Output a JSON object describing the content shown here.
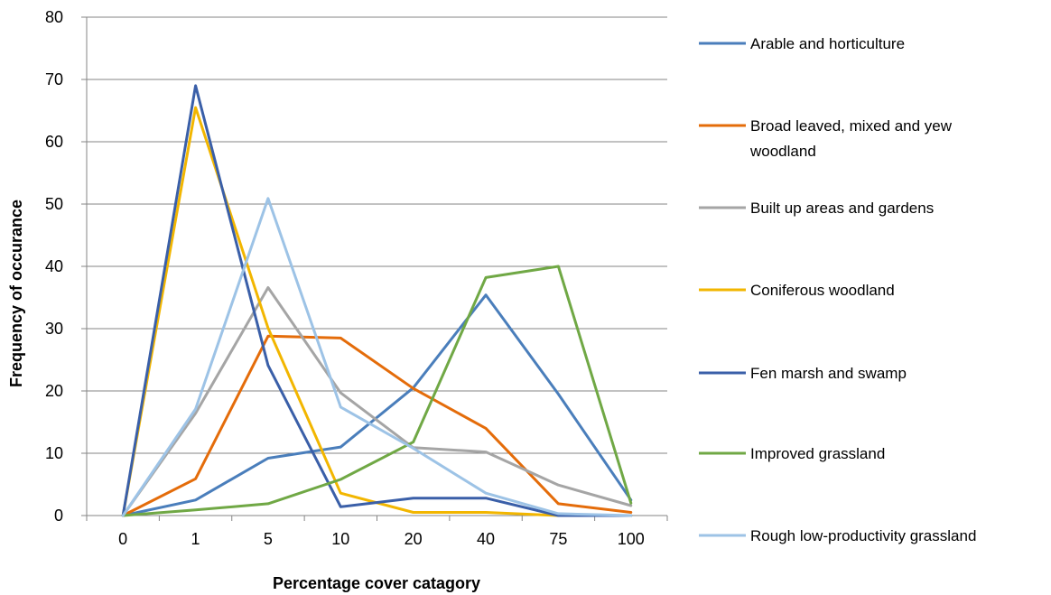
{
  "chart_data": {
    "type": "line",
    "title": "",
    "xlabel": "Percentage cover catagory",
    "ylabel": "Frequency of occurance",
    "categories": [
      "0",
      "1",
      "5",
      "10",
      "20",
      "40",
      "75",
      "100"
    ],
    "ylim": [
      0,
      80
    ],
    "yticks": [
      0,
      10,
      20,
      30,
      40,
      50,
      60,
      70,
      80
    ],
    "grid": "horizontal",
    "legend_position": "right",
    "series": [
      {
        "name": "Arable and horticulture",
        "color": "#4a7ebb",
        "values": [
          0,
          2.5,
          9.2,
          11,
          20.5,
          35.4,
          19.5,
          2.5
        ]
      },
      {
        "name": "Broad leaved, mixed and yew woodland",
        "color": "#e46c0a",
        "values": [
          0,
          5.9,
          28.8,
          28.5,
          20.4,
          14,
          1.9,
          0.5
        ]
      },
      {
        "name": "Built up areas and gardens",
        "color": "#a5a5a5",
        "values": [
          0,
          16.4,
          36.6,
          19.7,
          10.9,
          10.2,
          4.9,
          1.6
        ]
      },
      {
        "name": "Coniferous woodland",
        "color": "#f2b600",
        "values": [
          0,
          65.5,
          30.1,
          3.6,
          0.5,
          0.5,
          0,
          0
        ]
      },
      {
        "name": "Fen marsh and swamp",
        "color": "#3a5fa8",
        "values": [
          0,
          69,
          24.1,
          1.4,
          2.8,
          2.8,
          0,
          0
        ]
      },
      {
        "name": "Improved grassland",
        "color": "#70a845",
        "values": [
          0,
          0.9,
          1.9,
          5.8,
          11.8,
          38.2,
          40,
          2
        ]
      },
      {
        "name": "Rough low-productivity grassland",
        "color": "#9dc3e6",
        "values": [
          0,
          17.1,
          50.9,
          17.4,
          10.8,
          3.6,
          0.3,
          0
        ]
      }
    ]
  }
}
